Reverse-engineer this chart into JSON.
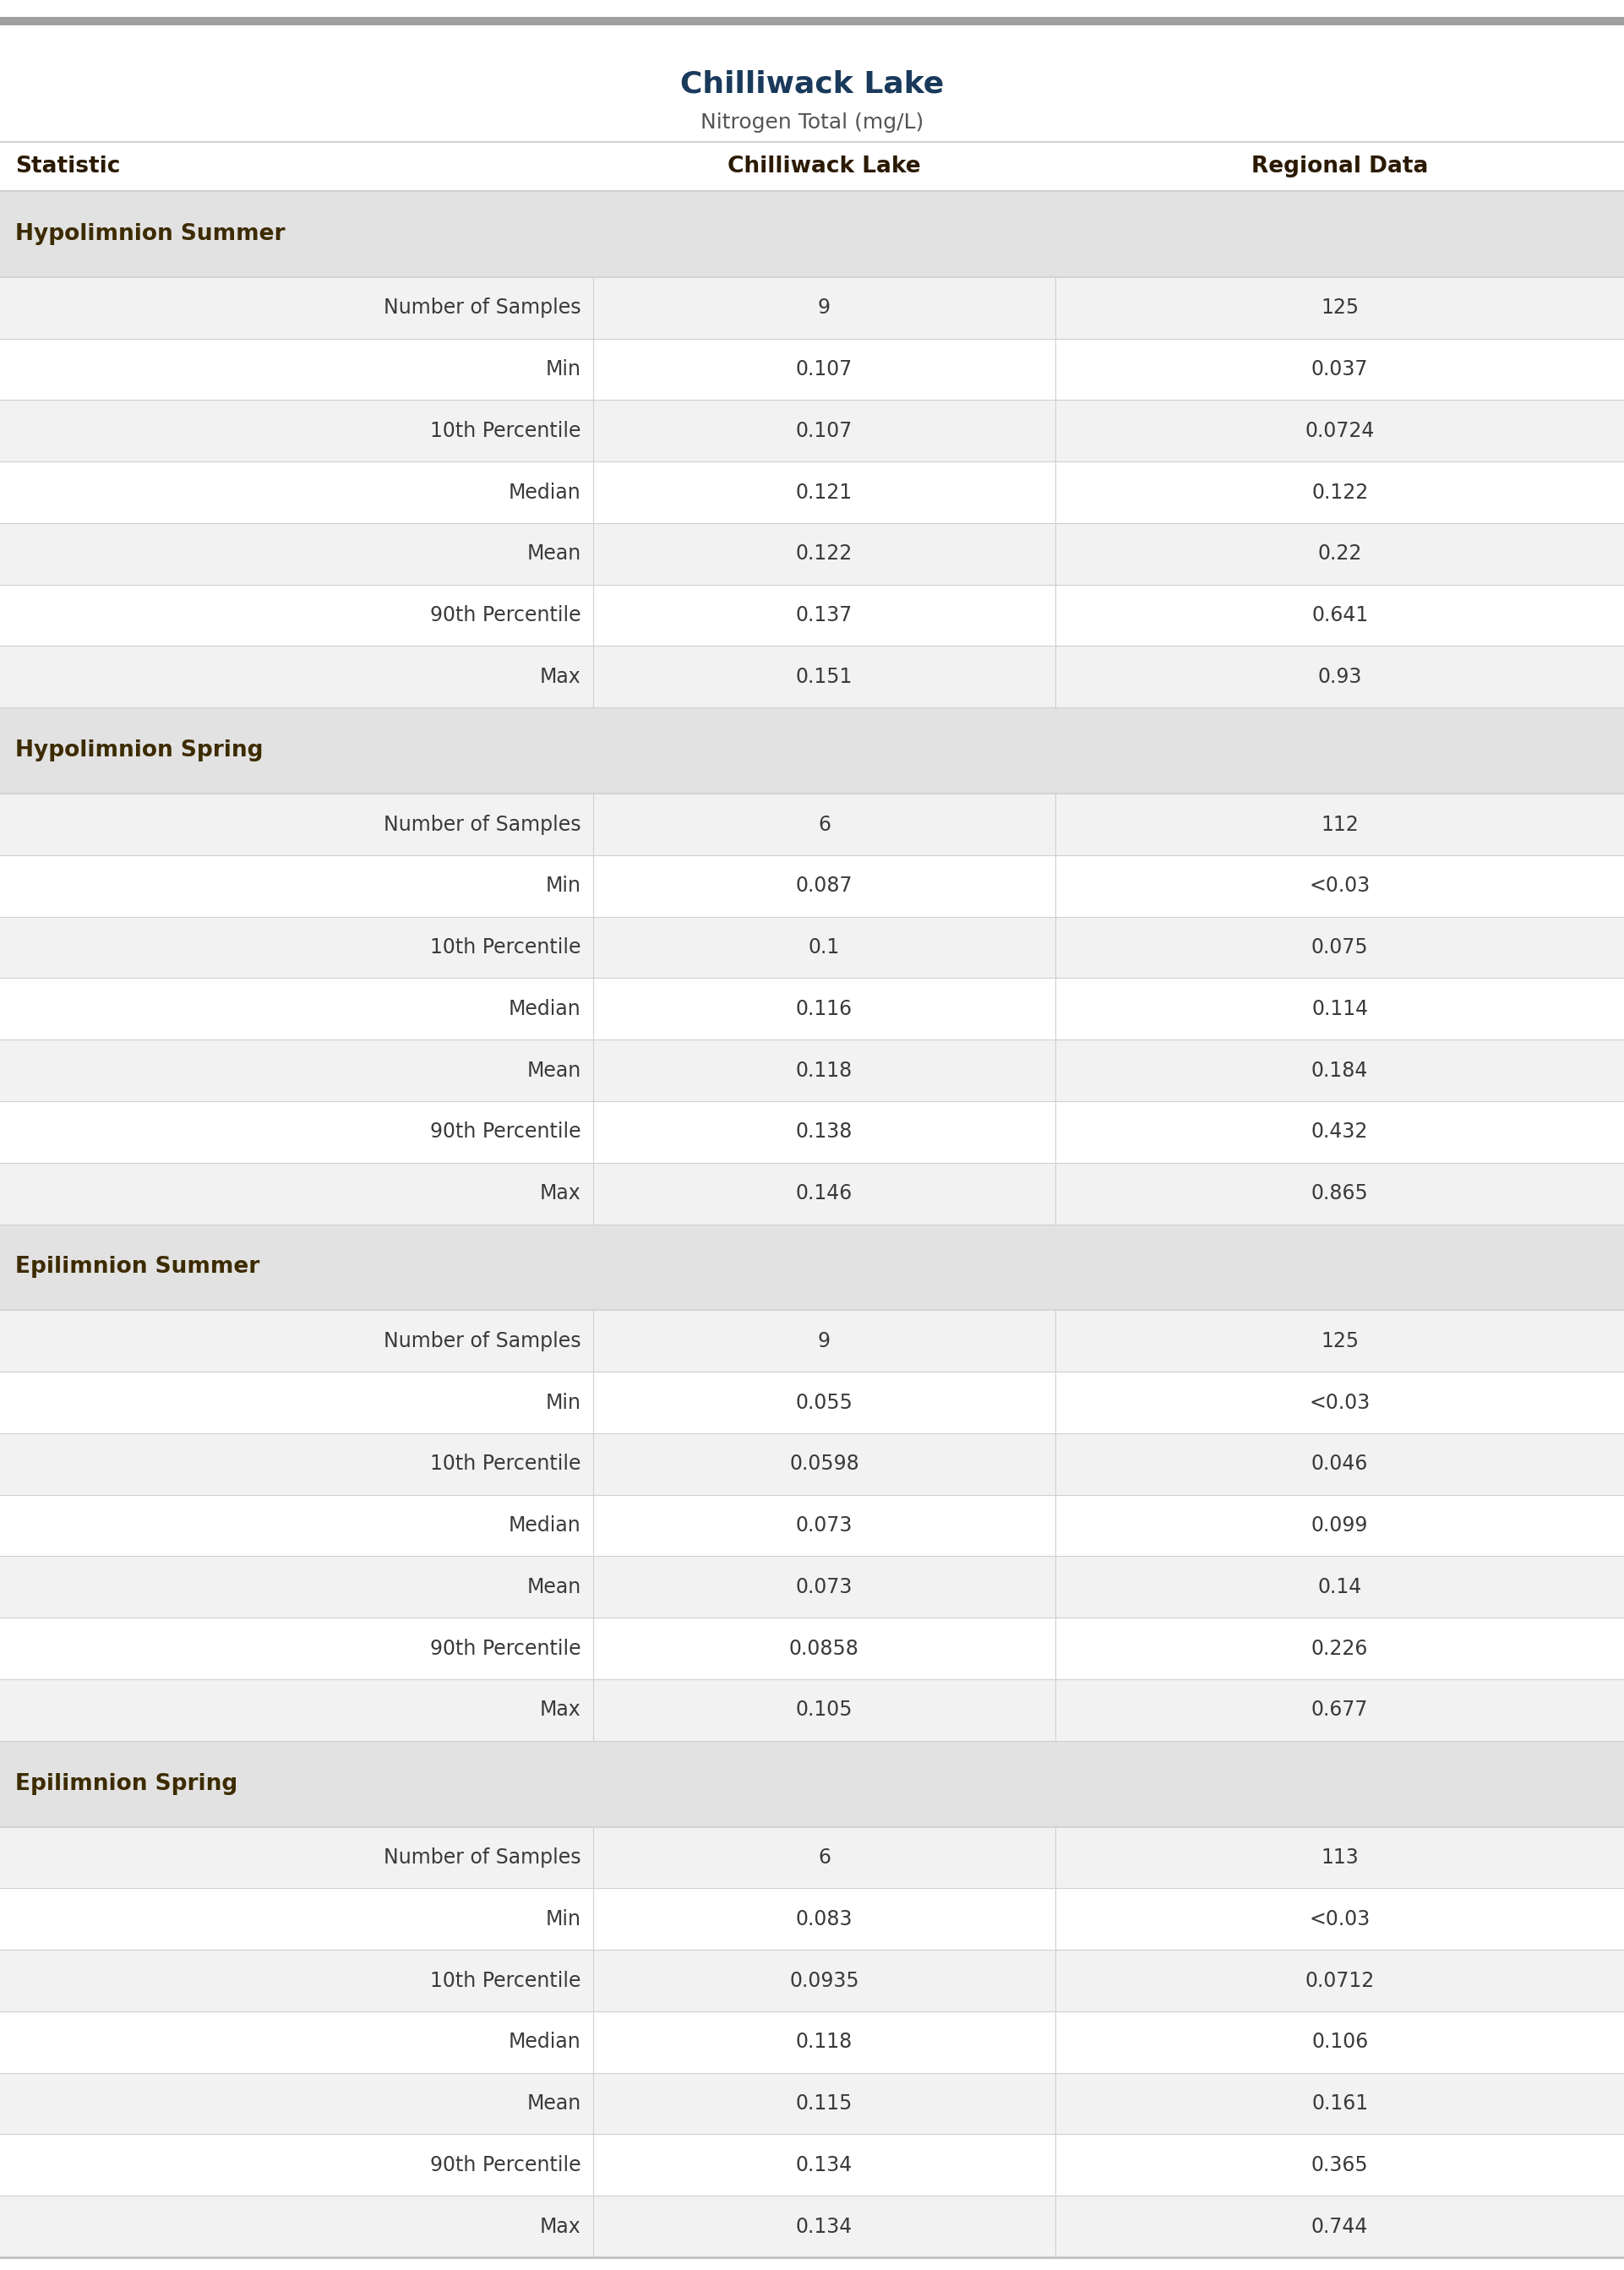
{
  "title": "Chilliwack Lake",
  "subtitle": "Nitrogen Total (mg/L)",
  "col_headers": [
    "Statistic",
    "Chilliwack Lake",
    "Regional Data"
  ],
  "sections": [
    {
      "label": "Hypolimnion Summer",
      "rows": [
        [
          "Number of Samples",
          "9",
          "125"
        ],
        [
          "Min",
          "0.107",
          "0.037"
        ],
        [
          "10th Percentile",
          "0.107",
          "0.0724"
        ],
        [
          "Median",
          "0.121",
          "0.122"
        ],
        [
          "Mean",
          "0.122",
          "0.22"
        ],
        [
          "90th Percentile",
          "0.137",
          "0.641"
        ],
        [
          "Max",
          "0.151",
          "0.93"
        ]
      ]
    },
    {
      "label": "Hypolimnion Spring",
      "rows": [
        [
          "Number of Samples",
          "6",
          "112"
        ],
        [
          "Min",
          "0.087",
          "<0.03"
        ],
        [
          "10th Percentile",
          "0.1",
          "0.075"
        ],
        [
          "Median",
          "0.116",
          "0.114"
        ],
        [
          "Mean",
          "0.118",
          "0.184"
        ],
        [
          "90th Percentile",
          "0.138",
          "0.432"
        ],
        [
          "Max",
          "0.146",
          "0.865"
        ]
      ]
    },
    {
      "label": "Epilimnion Summer",
      "rows": [
        [
          "Number of Samples",
          "9",
          "125"
        ],
        [
          "Min",
          "0.055",
          "<0.03"
        ],
        [
          "10th Percentile",
          "0.0598",
          "0.046"
        ],
        [
          "Median",
          "0.073",
          "0.099"
        ],
        [
          "Mean",
          "0.073",
          "0.14"
        ],
        [
          "90th Percentile",
          "0.0858",
          "0.226"
        ],
        [
          "Max",
          "0.105",
          "0.677"
        ]
      ]
    },
    {
      "label": "Epilimnion Spring",
      "rows": [
        [
          "Number of Samples",
          "6",
          "113"
        ],
        [
          "Min",
          "0.083",
          "<0.03"
        ],
        [
          "10th Percentile",
          "0.0935",
          "0.0712"
        ],
        [
          "Median",
          "0.118",
          "0.106"
        ],
        [
          "Mean",
          "0.115",
          "0.161"
        ],
        [
          "90th Percentile",
          "0.134",
          "0.365"
        ],
        [
          "Max",
          "0.134",
          "0.744"
        ]
      ]
    }
  ],
  "top_border_color": "#a0a0a0",
  "section_bg_color": "#e2e2e2",
  "row_bg_even": "#f2f2f2",
  "row_bg_odd": "#ffffff",
  "bottom_border_color": "#c0c0c0",
  "divider_color": "#d0d0d0",
  "title_color": "#1a3a5c",
  "subtitle_color": "#555555",
  "col_header_color": "#2b1a00",
  "text_color_section": "#3d2b00",
  "text_color_data": "#3a3a3a",
  "col_split1": 0.365,
  "col_split2": 0.65
}
